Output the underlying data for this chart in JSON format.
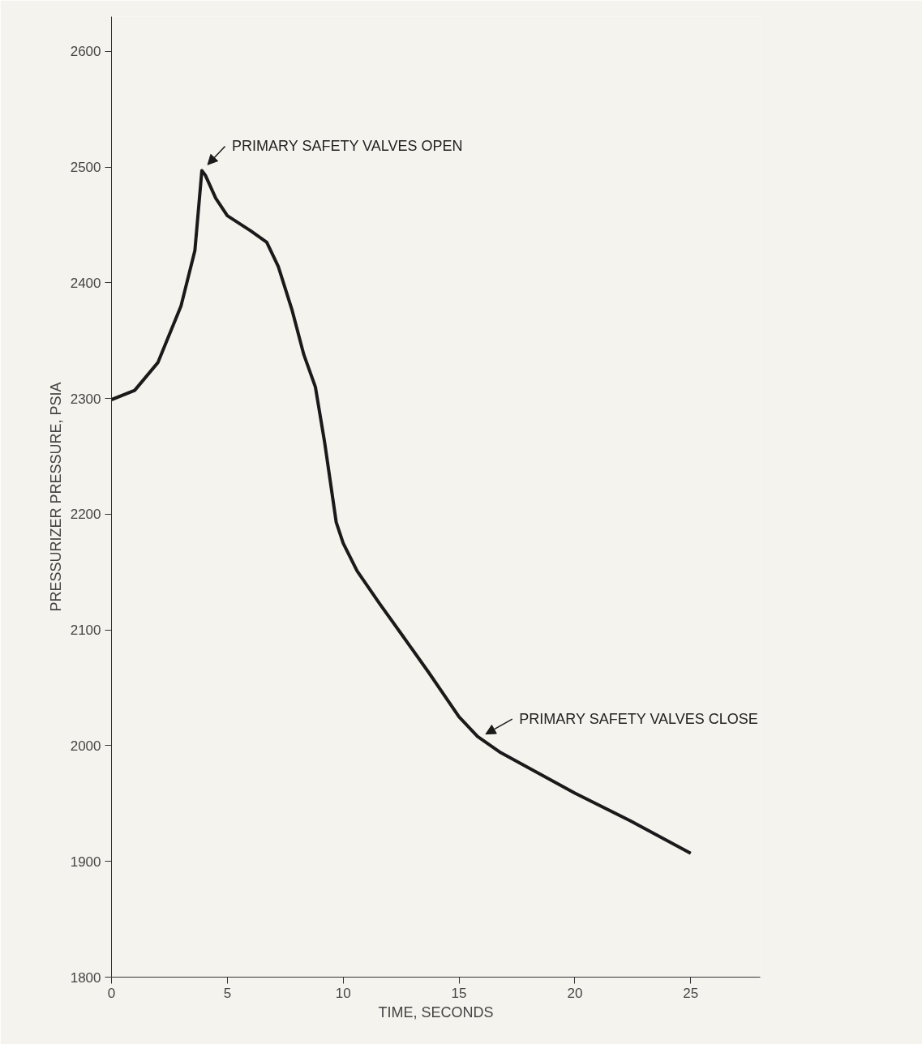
{
  "chart_data": {
    "type": "line",
    "xlabel": "TIME, SECONDS",
    "ylabel": "PRESSURIZER PRESSURE, PSIA",
    "x": [
      0,
      1,
      2,
      3,
      3.6,
      3.9,
      4.05,
      4.5,
      5,
      6,
      6.7,
      7.2,
      7.8,
      8.3,
      8.8,
      9.2,
      9.7,
      10,
      10.6,
      11.6,
      12.6,
      13.7,
      15,
      15.8,
      16.8,
      20,
      22.4,
      25
    ],
    "series": [
      {
        "color": "#1a1a1a",
        "values": [
          2299,
          2307,
          2331,
          2380,
          2428,
          2497,
          2493,
          2473,
          2458,
          2445,
          2435,
          2414,
          2376,
          2338,
          2310,
          2262,
          2193,
          2175,
          2151,
          2122,
          2094,
          2063,
          2025,
          2008,
          1994,
          1959,
          1935,
          1907
        ]
      }
    ],
    "xlim": [
      0,
      28
    ],
    "ylim": [
      1800,
      2630
    ],
    "xticks": [
      0,
      5,
      10,
      15,
      20,
      25
    ],
    "yticks": [
      1800,
      1900,
      2000,
      2100,
      2200,
      2300,
      2400,
      2500,
      2600
    ],
    "annotations": [
      {
        "text": "PRIMARY SAFETY VALVES OPEN",
        "x": 4,
        "y": 2500
      },
      {
        "text": "PRIMARY SAFETY VALVES CLOSE",
        "x": 16,
        "y": 2008
      }
    ],
    "grid": false
  }
}
